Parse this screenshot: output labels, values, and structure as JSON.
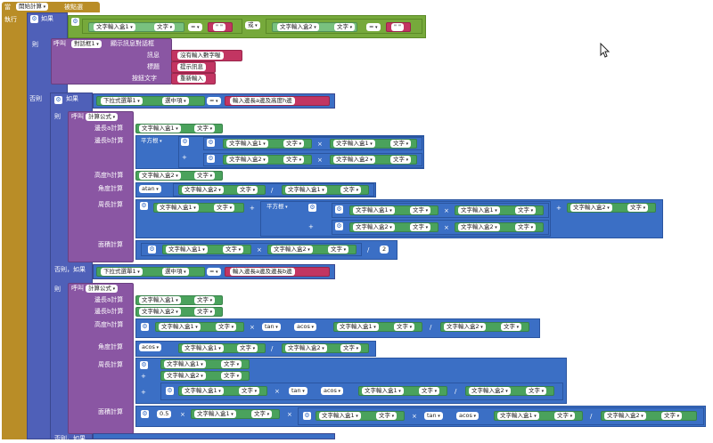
{
  "event": {
    "when": "當",
    "component": "開始計算",
    "event_name": "被點選",
    "do": "執行"
  },
  "if1": {
    "if_label": "如果",
    "eq_op": "=",
    "and_label": "或",
    "comp_a": "文字輸入盒1",
    "comp_b": "文字輸入盒2",
    "prop": "文字",
    "empty": "\" \""
  },
  "then1": {
    "then_label": "則",
    "call": "呼叫",
    "notifier": "對話框1",
    "method": "顯示訊息對話框",
    "msg_label": "訊息",
    "msg_val": "沒有輸入數字喔",
    "title_label": "標題",
    "title_val": "提示訊息",
    "btn_label": "按鈕文字",
    "btn_val": "重新輸入"
  },
  "else_label": "否則",
  "if2": {
    "if_label": "如果",
    "spinner": "下拉式選單1",
    "selection": "選中項",
    "eq": "=",
    "val": "輸入邊長a邊及高度h邊"
  },
  "calc": {
    "then_label": "則",
    "call": "呼叫",
    "proc": "計算公式",
    "a_label": "邊長a計算",
    "b_label": "邊長b計算",
    "h_label": "高度h計算",
    "angle_label": "角度計算",
    "perimeter_label": "周長計算",
    "area_label": "面積計算",
    "sqrt": "平方根",
    "atan": "atan",
    "tan": "tan",
    "acos": "acos",
    "two": "2",
    "half": "0.5",
    "tb1": "文字輸入盒1",
    "tb2": "文字輸入盒2",
    "text": "文字",
    "plus": "+",
    "times": "×",
    "div": "/"
  },
  "elseif_label": "否則，如果",
  "if3": {
    "spinner": "下拉式選單1",
    "selection": "選中項",
    "eq": "=",
    "val": "輸入邊長a邊及邊長b邊"
  }
}
